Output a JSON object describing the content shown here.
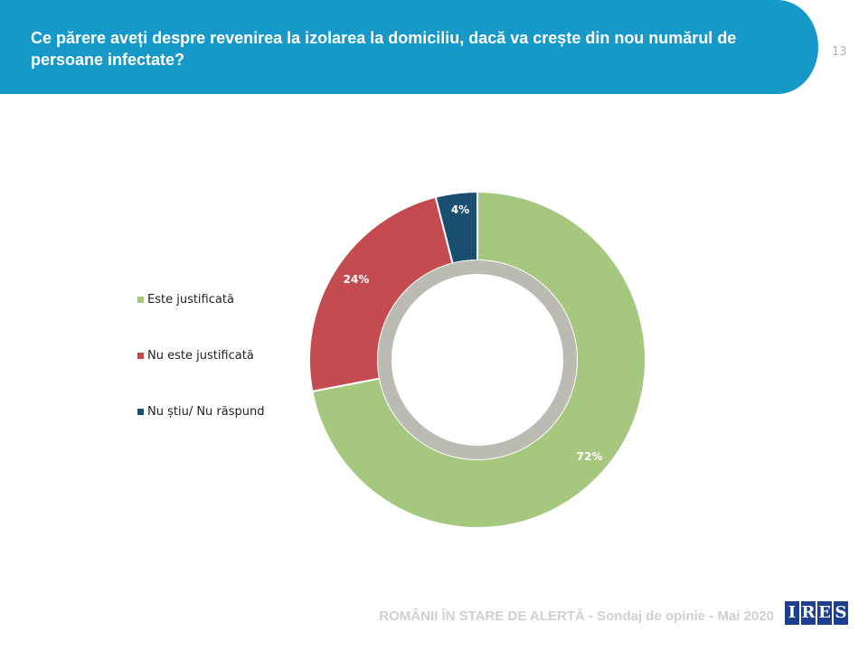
{
  "header": {
    "title": "Ce părere aveți despre revenirea la izolarea la domiciliu, dacă va crește din nou numărul de persoane infectate?",
    "page_number": "13"
  },
  "footer": {
    "text": "ROMÂNII ÎN STARE DE ALERTĂ - Sondaj de opinie - Mai 2020",
    "logo": "IRES"
  },
  "chart_data": {
    "type": "pie",
    "variant": "donut",
    "title": "Ce părere aveți despre revenirea la izolarea la domiciliu, dacă va crește din nou numărul de persoane infectate?",
    "categories": [
      "Este justificată",
      "Nu este justificată",
      "Nu știu/ Nu răspund"
    ],
    "values": [
      72,
      24,
      4
    ],
    "labels": [
      "72%",
      "24%",
      "4%"
    ],
    "colors": [
      "#a6c77e",
      "#c44b4f",
      "#1b4f72"
    ],
    "legend_position": "left"
  }
}
